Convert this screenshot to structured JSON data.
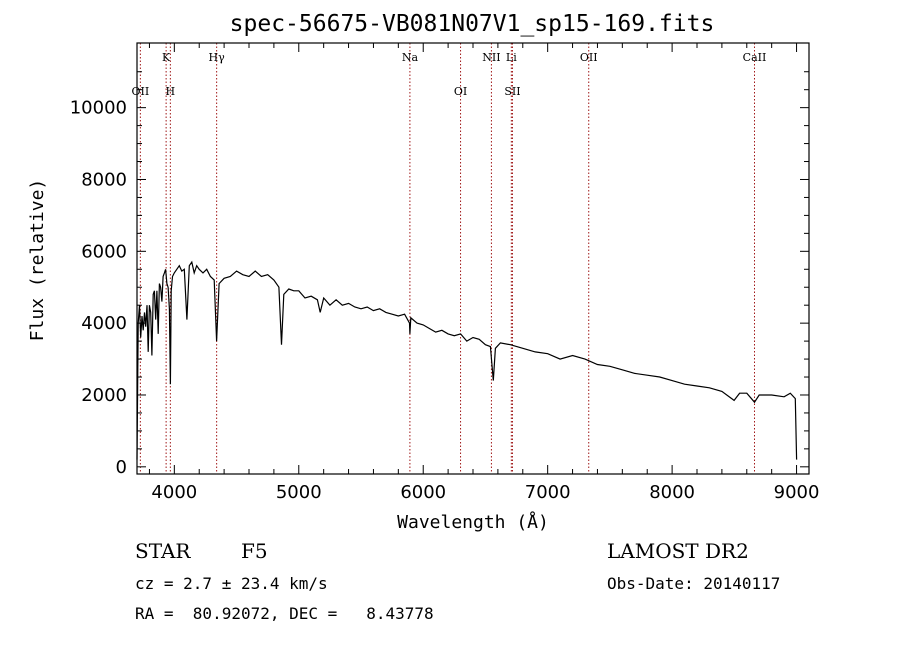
{
  "chart_data": {
    "type": "line",
    "title": "spec-56675-VB081N07V1_sp15-169.fits",
    "xlabel": "Wavelength (Å)",
    "ylabel": "Flux (relative)",
    "xlim": [
      3700,
      9100
    ],
    "ylim": [
      -200,
      11800
    ],
    "x_ticks": [
      4000,
      5000,
      6000,
      7000,
      8000,
      9000
    ],
    "y_ticks": [
      0,
      2000,
      4000,
      6000,
      8000,
      10000
    ],
    "grid": false,
    "series": [
      {
        "x": [
          3700,
          3710,
          3720,
          3730,
          3740,
          3750,
          3760,
          3770,
          3780,
          3790,
          3800,
          3810,
          3820,
          3830,
          3840,
          3850,
          3860,
          3870,
          3880,
          3890,
          3900,
          3910,
          3920,
          3930,
          3940,
          3950,
          3960,
          3968,
          3975,
          3985,
          4000,
          4020,
          4040,
          4060,
          4080,
          4101,
          4120,
          4140,
          4160,
          4180,
          4200,
          4230,
          4260,
          4290,
          4320,
          4340,
          4360,
          4400,
          4450,
          4500,
          4550,
          4600,
          4650,
          4700,
          4750,
          4800,
          4840,
          4861,
          4880,
          4920,
          4960,
          5000,
          5050,
          5100,
          5150,
          5172,
          5200,
          5250,
          5300,
          5350,
          5400,
          5450,
          5500,
          5550,
          5600,
          5650,
          5700,
          5750,
          5800,
          5850,
          5890,
          5893,
          5900,
          5950,
          6000,
          6050,
          6100,
          6150,
          6200,
          6250,
          6300,
          6350,
          6400,
          6450,
          6500,
          6540,
          6563,
          6580,
          6620,
          6700,
          6800,
          6900,
          7000,
          7100,
          7200,
          7300,
          7400,
          7500,
          7600,
          7700,
          7800,
          7900,
          8000,
          8100,
          8200,
          8300,
          8400,
          8498,
          8542,
          8600,
          8662,
          8700,
          8800,
          8900,
          8950,
          8990,
          9000
        ],
        "values": [
          200,
          4000,
          4500,
          3600,
          4200,
          3800,
          4300,
          3900,
          4500,
          3200,
          4500,
          4300,
          3100,
          4800,
          4900,
          4100,
          4900,
          3700,
          5100,
          5000,
          4600,
          5300,
          5400,
          5500,
          5100,
          5000,
          4400,
          2300,
          4900,
          5300,
          5400,
          5500,
          5600,
          5450,
          5500,
          4100,
          5600,
          5700,
          5400,
          5600,
          5500,
          5400,
          5500,
          5300,
          5200,
          3500,
          5100,
          5250,
          5300,
          5450,
          5350,
          5300,
          5450,
          5300,
          5350,
          5200,
          5000,
          3400,
          4800,
          4950,
          4900,
          4900,
          4700,
          4750,
          4650,
          4300,
          4700,
          4500,
          4650,
          4500,
          4550,
          4450,
          4400,
          4450,
          4350,
          4400,
          4300,
          4250,
          4200,
          4250,
          4000,
          3700,
          4150,
          4000,
          3950,
          3850,
          3750,
          3800,
          3700,
          3650,
          3700,
          3500,
          3600,
          3550,
          3400,
          3350,
          2400,
          3300,
          3450,
          3400,
          3300,
          3200,
          3150,
          3000,
          3100,
          3000,
          2850,
          2800,
          2700,
          2600,
          2550,
          2500,
          2400,
          2300,
          2250,
          2200,
          2100,
          1850,
          2050,
          2050,
          1800,
          2000,
          2000,
          1950,
          2050,
          1900,
          200
        ]
      }
    ],
    "line_marks": [
      {
        "label": "OII",
        "x": 3727,
        "row": 2
      },
      {
        "label": "K",
        "x": 3934,
        "row": 1
      },
      {
        "label": "H",
        "x": 3968,
        "row": 2
      },
      {
        "label": "Hγ",
        "x": 4340,
        "row": 1
      },
      {
        "label": "Na",
        "x": 5893,
        "row": 1
      },
      {
        "label": "OI",
        "x": 6300,
        "row": 2
      },
      {
        "label": "NII",
        "x": 6548,
        "row": 1
      },
      {
        "label": "Li",
        "x": 6708,
        "row": 1
      },
      {
        "label": "SII",
        "x": 6717,
        "row": 2
      },
      {
        "label": "OII",
        "x": 7330,
        "row": 1
      },
      {
        "label": "CaII",
        "x": 8662,
        "row": 1
      }
    ]
  },
  "info": {
    "class": "STAR",
    "subclass": "F5",
    "survey": "LAMOST DR2",
    "cz": "cz = 2.7 ± 23.4 km/s",
    "obs_date": "Obs-Date: 20140117",
    "coords": "RA =  80.92072, DEC =   8.43778"
  }
}
